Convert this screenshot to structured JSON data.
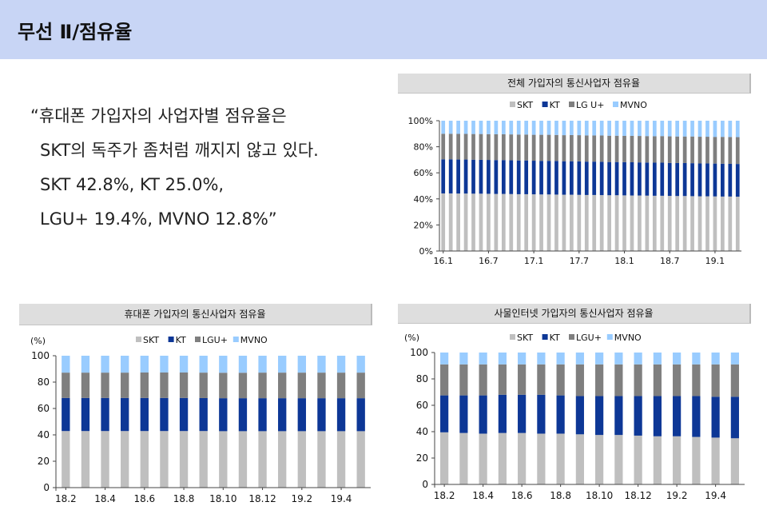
{
  "header": {
    "title": "무선 Ⅱ/점유율"
  },
  "quote": {
    "lines": [
      "“휴대폰 가입자의 사업자별 점유율은",
      "SKT의 독주가 좀처럼 깨지지 않고 있다.",
      "SKT 42.8%, KT 25.0%,",
      "LGU+ 19.4%, MVNO 12.8%”"
    ]
  },
  "colors": {
    "SKT": "#bfbfbf",
    "KT": "#0d3796",
    "LGU": "#7f7f7f",
    "MVNO": "#99ccff"
  },
  "chart_data": [
    {
      "id": "total",
      "type": "bar",
      "stacked": true,
      "title": "전체 가입자의 통신사업자 점유율",
      "unit_label": "",
      "legend": [
        "SKT",
        "KT",
        "LG U+",
        "MVNO"
      ],
      "y_ticks": [
        "0%",
        "20%",
        "40%",
        "60%",
        "80%",
        "100%"
      ],
      "ylim": [
        0,
        100
      ],
      "x_tick_labels": [
        "16.1",
        "16.7",
        "17.1",
        "17.7",
        "18.1",
        "18.7",
        "19.1"
      ],
      "x_tick_every": 6,
      "bar_count": 40,
      "series": [
        {
          "name": "SKT",
          "values": [
            44.2,
            44.2,
            44.1,
            44.1,
            44.0,
            44.0,
            43.9,
            43.8,
            43.8,
            43.7,
            43.6,
            43.6,
            43.5,
            43.4,
            43.4,
            43.3,
            43.2,
            43.2,
            43.1,
            43.0,
            43.0,
            42.9,
            42.8,
            42.8,
            42.7,
            42.6,
            42.6,
            42.5,
            42.4,
            42.4,
            42.3,
            42.2,
            42.2,
            42.1,
            42.0,
            42.0,
            41.9,
            41.8,
            41.8,
            41.7
          ]
        },
        {
          "name": "KT",
          "values": [
            26.2,
            26.2,
            26.1,
            26.1,
            26.1,
            26.0,
            26.0,
            26.0,
            26.0,
            25.9,
            25.9,
            25.9,
            25.8,
            25.8,
            25.8,
            25.8,
            25.7,
            25.7,
            25.7,
            25.6,
            25.6,
            25.6,
            25.5,
            25.5,
            25.5,
            25.5,
            25.4,
            25.4,
            25.4,
            25.4,
            25.3,
            25.3,
            25.3,
            25.3,
            25.2,
            25.2,
            25.2,
            25.2,
            25.1,
            25.1
          ]
        },
        {
          "name": "LG U+",
          "values": [
            19.6,
            19.6,
            19.7,
            19.7,
            19.7,
            19.8,
            19.8,
            19.8,
            19.8,
            19.9,
            19.9,
            19.9,
            19.9,
            20.0,
            20.0,
            20.0,
            20.0,
            20.1,
            20.1,
            20.1,
            20.1,
            20.2,
            20.2,
            20.2,
            20.2,
            20.3,
            20.3,
            20.3,
            20.3,
            20.4,
            20.4,
            20.4,
            20.4,
            20.5,
            20.5,
            20.5,
            20.5,
            20.6,
            20.6,
            20.6
          ]
        },
        {
          "name": "MVNO",
          "values": [
            10.0,
            10.0,
            10.1,
            10.1,
            10.2,
            10.2,
            10.3,
            10.4,
            10.4,
            10.5,
            10.6,
            10.6,
            10.8,
            10.8,
            10.8,
            10.9,
            11.1,
            11.0,
            11.1,
            11.3,
            11.3,
            11.3,
            11.5,
            11.5,
            11.6,
            11.6,
            11.7,
            11.8,
            11.9,
            11.8,
            12.0,
            12.1,
            12.1,
            12.1,
            12.3,
            12.3,
            12.4,
            12.4,
            12.5,
            12.6
          ]
        }
      ]
    },
    {
      "id": "handset",
      "type": "bar",
      "stacked": true,
      "title": "휴대폰 가입자의 통신사업자 점유율",
      "unit_label": "(%)",
      "legend": [
        "SKT",
        "KT",
        "LGU+",
        "MVNO"
      ],
      "y_ticks": [
        "0",
        "20",
        "40",
        "60",
        "80",
        "100"
      ],
      "ylim": [
        0,
        100
      ],
      "x_tick_labels": [
        "18.2",
        "18.4",
        "18.6",
        "18.8",
        "18.10",
        "18.12",
        "19.2",
        "19.4"
      ],
      "x_tick_every": 2,
      "bar_count": 16,
      "series": [
        {
          "name": "SKT",
          "values": [
            42.9,
            42.9,
            42.9,
            42.9,
            42.9,
            42.9,
            42.9,
            42.9,
            42.8,
            42.8,
            42.8,
            42.8,
            42.8,
            42.8,
            42.8,
            42.8
          ]
        },
        {
          "name": "KT",
          "values": [
            25.1,
            25.1,
            25.1,
            25.1,
            25.1,
            25.1,
            25.1,
            25.0,
            25.0,
            25.0,
            25.0,
            25.0,
            25.0,
            25.0,
            25.0,
            25.0
          ]
        },
        {
          "name": "LGU+",
          "values": [
            19.2,
            19.2,
            19.2,
            19.2,
            19.3,
            19.3,
            19.3,
            19.3,
            19.3,
            19.3,
            19.4,
            19.4,
            19.4,
            19.4,
            19.4,
            19.4
          ]
        },
        {
          "name": "MVNO",
          "values": [
            12.8,
            12.8,
            12.8,
            12.8,
            12.7,
            12.7,
            12.7,
            12.8,
            12.9,
            12.9,
            12.8,
            12.8,
            12.8,
            12.8,
            12.8,
            12.8
          ]
        }
      ]
    },
    {
      "id": "iot",
      "type": "bar",
      "stacked": true,
      "title": "사물인터넷 가입자의 통신사업자 점유율",
      "unit_label": "(%)",
      "legend": [
        "SKT",
        "KT",
        "LGU+",
        "MVNO"
      ],
      "y_ticks": [
        "0",
        "20",
        "40",
        "60",
        "80",
        "100"
      ],
      "ylim": [
        0,
        100
      ],
      "x_tick_labels": [
        "18.2",
        "18.4",
        "18.6",
        "18.8",
        "18.10",
        "18.12",
        "19.2",
        "19.4"
      ],
      "x_tick_every": 2,
      "bar_count": 16,
      "series": [
        {
          "name": "SKT",
          "values": [
            39.5,
            39.0,
            38.5,
            39.0,
            39.0,
            38.5,
            38.5,
            38.0,
            37.5,
            37.5,
            37.0,
            36.5,
            36.5,
            36.0,
            35.5,
            35.0
          ]
        },
        {
          "name": "KT",
          "values": [
            28.0,
            28.5,
            29.0,
            29.0,
            29.0,
            29.5,
            29.0,
            29.0,
            29.5,
            29.5,
            30.0,
            30.5,
            30.5,
            31.0,
            31.0,
            31.5
          ]
        },
        {
          "name": "LGU+",
          "values": [
            23.5,
            23.5,
            23.5,
            23.0,
            23.0,
            23.0,
            23.5,
            24.0,
            24.0,
            24.0,
            24.0,
            24.0,
            24.0,
            24.0,
            24.5,
            24.5
          ]
        },
        {
          "name": "MVNO",
          "values": [
            9.0,
            9.0,
            9.0,
            9.0,
            9.0,
            9.0,
            9.0,
            9.0,
            9.0,
            9.0,
            9.0,
            9.0,
            9.0,
            9.0,
            9.0,
            9.0
          ]
        }
      ]
    }
  ]
}
